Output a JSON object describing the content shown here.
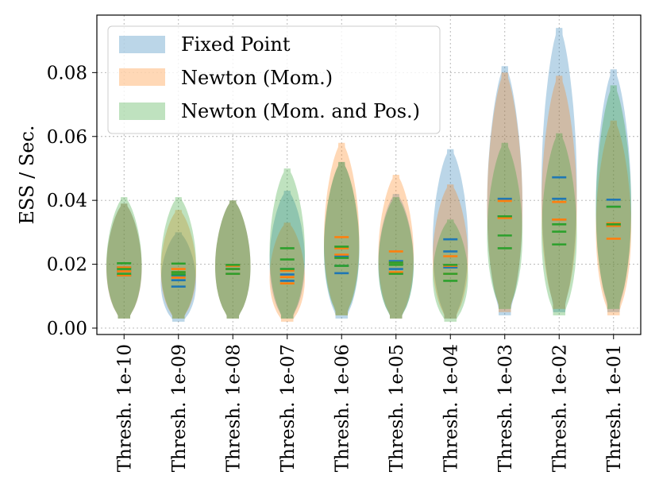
{
  "chart_data": {
    "type": "violin",
    "ylabel": "ESS / Sec.",
    "xlabel": "",
    "ylim": [
      -0.002,
      0.098
    ],
    "yticks": [
      0.0,
      0.02,
      0.04,
      0.06,
      0.08
    ],
    "ytick_labels": [
      "0.00",
      "0.02",
      "0.04",
      "0.06",
      "0.08"
    ],
    "grid": true,
    "legend_position": "top-left",
    "categories": [
      "Thresh. 1e-10",
      "Thresh. 1e-09",
      "Thresh. 1e-08",
      "Thresh. 1e-07",
      "Thresh. 1e-06",
      "Thresh. 1e-05",
      "Thresh. 1e-04",
      "Thresh. 1e-03",
      "Thresh. 1e-02",
      "Thresh. 1e-01"
    ],
    "series": [
      {
        "name": "Fixed Point",
        "color": "#1f77b4",
        "alpha": 0.3,
        "ranges": [
          [
            0.003,
            0.039
          ],
          [
            0.002,
            0.03
          ],
          [
            0.003,
            0.04
          ],
          [
            0.003,
            0.043
          ],
          [
            0.003,
            0.052
          ],
          [
            0.003,
            0.042
          ],
          [
            0.003,
            0.056
          ],
          [
            0.004,
            0.082
          ],
          [
            0.005,
            0.094
          ],
          [
            0.005,
            0.081
          ]
        ],
        "max_width": [
          0.65,
          0.65,
          0.65,
          0.65,
          0.65,
          0.65,
          0.65,
          0.65,
          0.65,
          0.65
        ],
        "quartiles": [
          [
            0.0165,
            0.0178,
            0.019
          ],
          [
            0.013,
            0.015,
            0.0165
          ],
          [
            0.017,
            0.0185,
            0.0195
          ],
          [
            0.0148,
            0.0168,
            0.0185
          ],
          [
            0.0172,
            0.0195,
            0.0225
          ],
          [
            0.0172,
            0.0185,
            0.021
          ],
          [
            0.019,
            0.024,
            0.0278
          ],
          [
            0.035,
            0.035,
            0.0405
          ],
          [
            0.034,
            0.0405,
            0.0472
          ],
          [
            0.032,
            0.038,
            0.0402
          ]
        ]
      },
      {
        "name": "Newton (Mom.)",
        "color": "#ff7f0e",
        "alpha": 0.3,
        "ranges": [
          [
            0.003,
            0.039
          ],
          [
            0.003,
            0.037
          ],
          [
            0.003,
            0.04
          ],
          [
            0.002,
            0.033
          ],
          [
            0.004,
            0.058
          ],
          [
            0.003,
            0.048
          ],
          [
            0.003,
            0.045
          ],
          [
            0.005,
            0.08
          ],
          [
            0.006,
            0.079
          ],
          [
            0.004,
            0.065
          ]
        ],
        "max_width": [
          0.65,
          0.65,
          0.65,
          0.65,
          0.65,
          0.65,
          0.65,
          0.65,
          0.65,
          0.65
        ],
        "quartiles": [
          [
            0.0165,
            0.0178,
            0.019
          ],
          [
            0.0158,
            0.0175,
            0.0185
          ],
          [
            0.017,
            0.0185,
            0.0195
          ],
          [
            0.014,
            0.016,
            0.018
          ],
          [
            0.023,
            0.025,
            0.0285
          ],
          [
            0.0175,
            0.0205,
            0.024
          ],
          [
            0.017,
            0.0195,
            0.0225
          ],
          [
            0.0345,
            0.0345,
            0.0398
          ],
          [
            0.034,
            0.034,
            0.0395
          ],
          [
            0.028,
            0.032,
            0.0328
          ]
        ]
      },
      {
        "name": "Newton (Mom. and Pos.)",
        "color": "#2ca02c",
        "alpha": 0.3,
        "ranges": [
          [
            0.003,
            0.041
          ],
          [
            0.003,
            0.041
          ],
          [
            0.003,
            0.04
          ],
          [
            0.003,
            0.05
          ],
          [
            0.004,
            0.052
          ],
          [
            0.003,
            0.041
          ],
          [
            0.002,
            0.034
          ],
          [
            0.006,
            0.058
          ],
          [
            0.004,
            0.061
          ],
          [
            0.006,
            0.076
          ]
        ],
        "max_width": [
          0.65,
          0.65,
          0.65,
          0.65,
          0.65,
          0.65,
          0.65,
          0.65,
          0.65,
          0.65
        ],
        "quartiles": [
          [
            0.017,
            0.0185,
            0.0203
          ],
          [
            0.0168,
            0.0175,
            0.0202
          ],
          [
            0.017,
            0.0185,
            0.0198
          ],
          [
            0.0185,
            0.0215,
            0.025
          ],
          [
            0.0195,
            0.022,
            0.0255
          ],
          [
            0.017,
            0.0198,
            0.0205
          ],
          [
            0.0148,
            0.017,
            0.0198
          ],
          [
            0.025,
            0.029,
            0.035
          ],
          [
            0.0262,
            0.0302,
            0.0325
          ],
          [
            0.0325,
            0.0325,
            0.038
          ]
        ]
      }
    ]
  }
}
